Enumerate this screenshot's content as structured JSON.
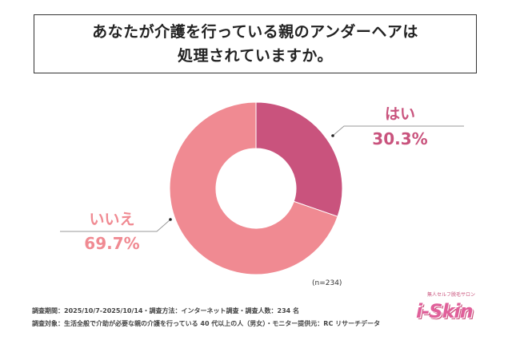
{
  "title": {
    "line1": "あなたが介護を行っている親のアンダーヘアは",
    "line2": "処理されていますか。"
  },
  "chart_data": {
    "type": "pie",
    "title": "あなたが介護を行っている親のアンダーヘアは処理されていますか。",
    "donut": true,
    "slices": [
      {
        "label": "はい",
        "value": 30.3,
        "display": "30.3%",
        "color": "#c9537d"
      },
      {
        "label": "いいえ",
        "value": 69.7,
        "display": "69.7%",
        "color": "#f08a92"
      }
    ],
    "n_label": "(n=234)"
  },
  "footer": {
    "line1": "調査期間：2025/10/7-2025/10/14・調査方法：インターネット調査・調査人数：234 名",
    "line2": "調査対象：生活全般で介助が必要な親の介護を行っている 40 代以上の人（男女）・モニター提供元：RC リサーチデータ"
  },
  "logo": {
    "tagline": "無人セルフ脱毛サロン",
    "brand": "i-Skin"
  }
}
